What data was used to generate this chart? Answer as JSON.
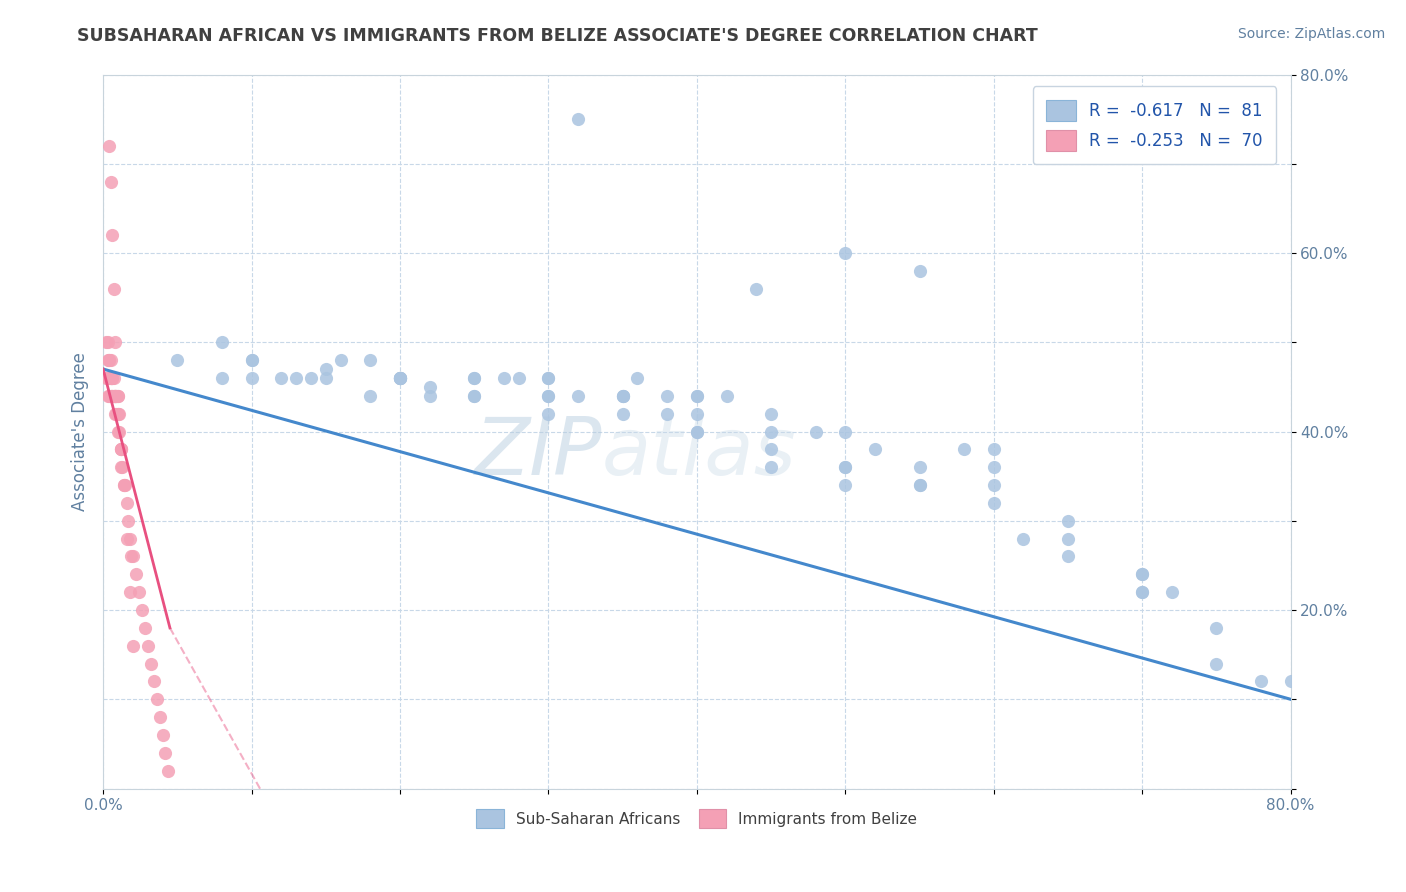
{
  "title": "SUBSAHARAN AFRICAN VS IMMIGRANTS FROM BELIZE ASSOCIATE'S DEGREE CORRELATION CHART",
  "source_text": "Source: ZipAtlas.com",
  "ylabel": "Associate's Degree",
  "xlim": [
    0.0,
    0.8
  ],
  "ylim": [
    0.0,
    0.8
  ],
  "xticks": [
    0.0,
    0.1,
    0.2,
    0.3,
    0.4,
    0.5,
    0.6,
    0.7,
    0.8
  ],
  "yticks": [
    0.0,
    0.1,
    0.2,
    0.3,
    0.4,
    0.5,
    0.6,
    0.7,
    0.8
  ],
  "xtick_labels": [
    "0.0%",
    "",
    "",
    "",
    "",
    "",
    "",
    "",
    "80.0%"
  ],
  "ytick_labels_right": [
    "",
    "",
    "20.0%",
    "",
    "40.0%",
    "",
    "60.0%",
    "",
    "80.0%"
  ],
  "blue_color": "#aac4e0",
  "pink_color": "#f4a0b5",
  "blue_line_color": "#4488cc",
  "pink_line_color": "#e85080",
  "legend_blue_R": "-0.617",
  "legend_blue_N": "81",
  "legend_pink_R": "-0.253",
  "legend_pink_N": "70",
  "blue_scatter_x": [
    0.32,
    0.05,
    0.1,
    0.08,
    0.12,
    0.15,
    0.2,
    0.18,
    0.25,
    0.22,
    0.08,
    0.1,
    0.13,
    0.18,
    0.14,
    0.2,
    0.22,
    0.16,
    0.25,
    0.28,
    0.3,
    0.27,
    0.35,
    0.32,
    0.38,
    0.4,
    0.36,
    0.42,
    0.45,
    0.38,
    0.5,
    0.48,
    0.52,
    0.44,
    0.55,
    0.58,
    0.6,
    0.65,
    0.62,
    0.7,
    0.72,
    0.75,
    0.78,
    0.3,
    0.35,
    0.4,
    0.45,
    0.5,
    0.55,
    0.6,
    0.65,
    0.7,
    0.2,
    0.25,
    0.3,
    0.35,
    0.4,
    0.45,
    0.5,
    0.55,
    0.15,
    0.2,
    0.25,
    0.3,
    0.35,
    0.4,
    0.45,
    0.5,
    0.55,
    0.6,
    0.65,
    0.7,
    0.75,
    0.1,
    0.2,
    0.3,
    0.4,
    0.5,
    0.6,
    0.7,
    0.8
  ],
  "blue_scatter_y": [
    0.75,
    0.48,
    0.46,
    0.5,
    0.46,
    0.47,
    0.46,
    0.48,
    0.46,
    0.44,
    0.46,
    0.48,
    0.46,
    0.44,
    0.46,
    0.46,
    0.45,
    0.48,
    0.44,
    0.46,
    0.46,
    0.46,
    0.44,
    0.44,
    0.44,
    0.44,
    0.46,
    0.44,
    0.42,
    0.42,
    0.6,
    0.4,
    0.38,
    0.56,
    0.58,
    0.38,
    0.36,
    0.3,
    0.28,
    0.24,
    0.22,
    0.14,
    0.12,
    0.44,
    0.44,
    0.44,
    0.4,
    0.4,
    0.36,
    0.38,
    0.28,
    0.22,
    0.46,
    0.46,
    0.46,
    0.44,
    0.42,
    0.38,
    0.34,
    0.34,
    0.46,
    0.46,
    0.44,
    0.44,
    0.42,
    0.4,
    0.36,
    0.36,
    0.34,
    0.32,
    0.26,
    0.22,
    0.18,
    0.48,
    0.46,
    0.42,
    0.4,
    0.36,
    0.34,
    0.24,
    0.12
  ],
  "pink_scatter_x": [
    0.002,
    0.002,
    0.003,
    0.003,
    0.003,
    0.004,
    0.004,
    0.004,
    0.005,
    0.005,
    0.005,
    0.005,
    0.005,
    0.006,
    0.006,
    0.006,
    0.007,
    0.007,
    0.008,
    0.008,
    0.008,
    0.009,
    0.009,
    0.01,
    0.01,
    0.01,
    0.011,
    0.011,
    0.012,
    0.012,
    0.013,
    0.014,
    0.015,
    0.016,
    0.017,
    0.018,
    0.019,
    0.02,
    0.022,
    0.024,
    0.026,
    0.028,
    0.03,
    0.032,
    0.034,
    0.036,
    0.038,
    0.04,
    0.042,
    0.044,
    0.003,
    0.004,
    0.005,
    0.006,
    0.007,
    0.008,
    0.009,
    0.01,
    0.012,
    0.014,
    0.016,
    0.018,
    0.02,
    0.004,
    0.005,
    0.006,
    0.007,
    0.008,
    0.01,
    0.012
  ],
  "pink_scatter_y": [
    0.5,
    0.46,
    0.48,
    0.44,
    0.46,
    0.48,
    0.46,
    0.44,
    0.46,
    0.44,
    0.46,
    0.44,
    0.46,
    0.46,
    0.44,
    0.44,
    0.44,
    0.44,
    0.44,
    0.42,
    0.44,
    0.44,
    0.42,
    0.44,
    0.42,
    0.4,
    0.42,
    0.4,
    0.38,
    0.36,
    0.36,
    0.34,
    0.34,
    0.32,
    0.3,
    0.28,
    0.26,
    0.26,
    0.24,
    0.22,
    0.2,
    0.18,
    0.16,
    0.14,
    0.12,
    0.1,
    0.08,
    0.06,
    0.04,
    0.02,
    0.5,
    0.48,
    0.48,
    0.46,
    0.46,
    0.44,
    0.44,
    0.42,
    0.38,
    0.34,
    0.28,
    0.22,
    0.16,
    0.72,
    0.68,
    0.62,
    0.56,
    0.5,
    0.44,
    0.38
  ],
  "watermark": "ZIPatlas",
  "background_color": "#ffffff",
  "grid_color": "#c8d8e8",
  "title_color": "#404040",
  "axis_label_color": "#6080a0"
}
